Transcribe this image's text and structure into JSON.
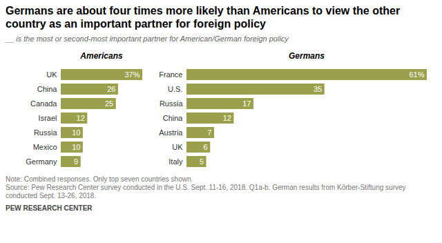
{
  "title": "Germans are about four times more likely than Americans to view the other country as an important partner for foreign policy",
  "subtitle": "__ is the most or second-most important partner for American/German foreign policy",
  "notes": [
    "Note: Combined responses. Only top seven countries shown.",
    "Source: Pew Research Center survey conducted in the U.S. Sept. 11-16, 2018. Q1a-b. German results from Körber-Stiftung survey conducted Sept. 13-26, 2018."
  ],
  "credit": "PEW RESEARCH CENTER",
  "chart_data": [
    {
      "type": "bar",
      "title": "Americans",
      "orientation": "horizontal",
      "categories": [
        "UK",
        "China",
        "Canada",
        "Israel",
        "Russia",
        "Mexico",
        "Germany"
      ],
      "values": [
        37,
        26,
        25,
        12,
        10,
        10,
        9
      ],
      "value_labels": [
        "37%",
        "26",
        "25",
        "12",
        "10",
        "10",
        "9"
      ],
      "color": "#9aa04b",
      "xlim": [
        0,
        37
      ],
      "data_labels": true,
      "tick_labels": "y"
    },
    {
      "type": "bar",
      "title": "Germans",
      "orientation": "horizontal",
      "categories": [
        "France",
        "U.S.",
        "Russia",
        "China",
        "Austria",
        "UK",
        "Italy"
      ],
      "values": [
        61,
        35,
        17,
        12,
        7,
        6,
        5
      ],
      "value_labels": [
        "61%",
        "35",
        "17",
        "12",
        "7",
        "6",
        "5"
      ],
      "color": "#9aa04b",
      "xlim": [
        0,
        61
      ],
      "data_labels": true,
      "tick_labels": "y"
    }
  ]
}
